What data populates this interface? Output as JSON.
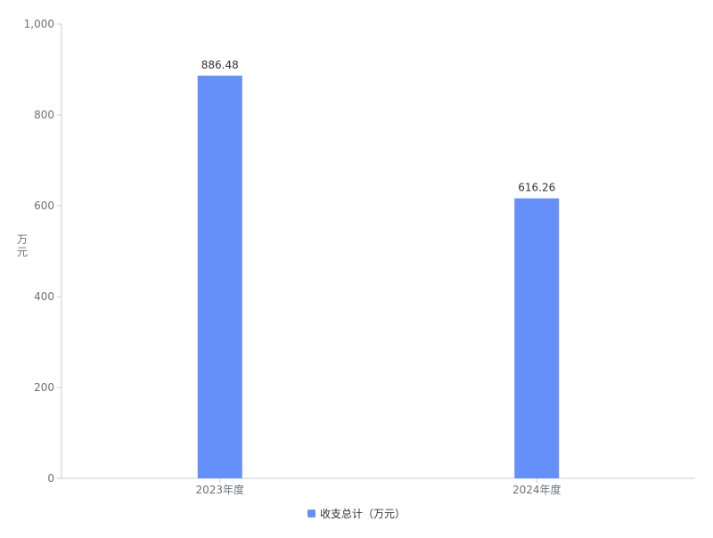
{
  "chart_data": {
    "type": "bar",
    "categories": [
      "2023年度",
      "2024年度"
    ],
    "series": [
      {
        "name": "收支总计（万元）",
        "values": [
          886.48,
          616.26
        ]
      }
    ],
    "data_labels": [
      "886.48",
      "616.26"
    ],
    "ylabel": "万元",
    "ylim": [
      0,
      1000
    ],
    "yticks": [
      0,
      200,
      400,
      600,
      800,
      1000
    ],
    "ytick_labels": [
      "0",
      "200",
      "400",
      "600",
      "800",
      "1,000"
    ],
    "grid": false,
    "legend_position": "bottom",
    "colors": {
      "bar": "#6690F9",
      "axis": "#cccccc",
      "tick_text": "#6e7079",
      "label_text": "#333333"
    }
  }
}
